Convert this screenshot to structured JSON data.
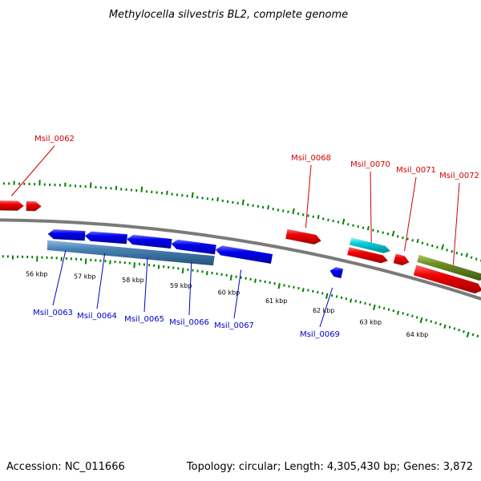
{
  "title": "Methylocella silvestris BL2, complete genome",
  "accession_label": "Accession: NC_011666",
  "summary_label": "Topology: circular; Length: 4,305,430 bp; Genes: 3,872",
  "colors": {
    "forward_gene": "#e00000",
    "reverse_gene": "#0000e0",
    "cyan_gene": "#00c8d0",
    "olive_gene": "#6b8e23",
    "steelblue_gene": "#4682b4",
    "tick_marks": "#008000",
    "backbone": "#808080"
  },
  "scale_labels": [
    {
      "kb": 56,
      "text": "56 kbp"
    },
    {
      "kb": 57,
      "text": "57 kbp"
    },
    {
      "kb": 58,
      "text": "58 kbp"
    },
    {
      "kb": 59,
      "text": "59 kbp"
    },
    {
      "kb": 60,
      "text": "60 kbp"
    },
    {
      "kb": 61,
      "text": "61 kbp"
    },
    {
      "kb": 62,
      "text": "62 kbp"
    },
    {
      "kb": 63,
      "text": "63 kbp"
    },
    {
      "kb": 64,
      "text": "64 kbp"
    }
  ],
  "forward_genes": [
    {
      "id": "Msil_0062",
      "label": "Msil_0062",
      "start_kb": 55.2,
      "end_kb": 55.7,
      "color": "forward"
    },
    {
      "id": "Msil_0062b",
      "label": "",
      "start_kb": 55.75,
      "end_kb": 56.05,
      "color": "forward"
    },
    {
      "id": "Msil_0068",
      "label": "Msil_0068",
      "start_kb": 60.95,
      "end_kb": 61.65,
      "color": "forward"
    },
    {
      "id": "Msil_0070",
      "label": "Msil_0070",
      "start_kb": 62.22,
      "end_kb": 63.03,
      "color": "cyan"
    },
    {
      "id": "Msil_0070b",
      "label": "",
      "start_kb": 62.22,
      "end_kb": 63.03,
      "color": "forward"
    },
    {
      "id": "Msil_0071",
      "label": "Msil_0071",
      "start_kb": 63.15,
      "end_kb": 63.45,
      "color": "forward"
    },
    {
      "id": "Msil_0072",
      "label": "Msil_0072",
      "start_kb": 63.6,
      "end_kb": 65.0,
      "color": "olive"
    },
    {
      "id": "Msil_0072b",
      "label": "",
      "start_kb": 63.6,
      "end_kb": 65.0,
      "color": "forward"
    }
  ],
  "reverse_genes": [
    {
      "id": "Msil_0063",
      "label": "Msil_0063",
      "start_kb": 56.2,
      "end_kb": 56.95,
      "color": "reverse"
    },
    {
      "id": "Msil_0064",
      "label": "Msil_0064",
      "start_kb": 56.95,
      "end_kb": 57.8,
      "color": "reverse"
    },
    {
      "id": "Msil_0065",
      "label": "Msil_0065",
      "start_kb": 57.8,
      "end_kb": 58.7,
      "color": "reverse"
    },
    {
      "id": "Msil_0066",
      "label": "Msil_0066",
      "start_kb": 58.7,
      "end_kb": 59.6,
      "color": "reverse"
    },
    {
      "id": "Msil_0067",
      "label": "Msil_0067",
      "start_kb": 59.6,
      "end_kb": 60.75,
      "color": "reverse"
    },
    {
      "id": "Msil_0069",
      "label": "Msil_0069",
      "start_kb": 61.95,
      "end_kb": 62.2,
      "color": "reverse"
    },
    {
      "id": "Msil_0063-0066_operon",
      "label": "",
      "start_kb": 56.2,
      "end_kb": 59.6,
      "color": "steelblue"
    }
  ]
}
